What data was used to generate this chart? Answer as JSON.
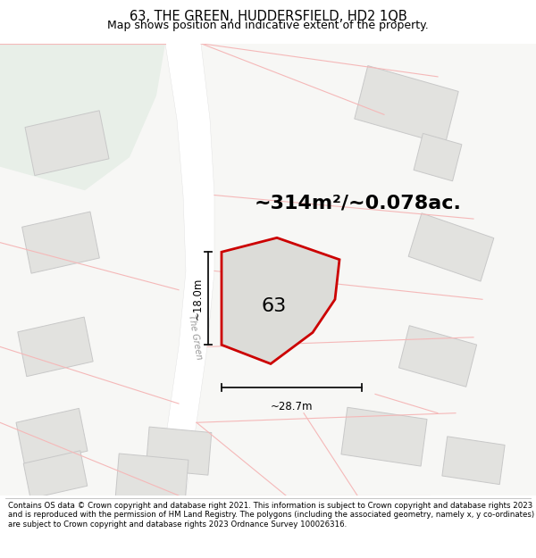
{
  "title_line1": "63, THE GREEN, HUDDERSFIELD, HD2 1QB",
  "title_line2": "Map shows position and indicative extent of the property.",
  "footer_text": "Contains OS data © Crown copyright and database right 2021. This information is subject to Crown copyright and database rights 2023 and is reproduced with the permission of HM Land Registry. The polygons (including the associated geometry, namely x, y co-ordinates) are subject to Crown copyright and database rights 2023 Ordnance Survey 100026316.",
  "area_text": "~314m²/~0.078ac.",
  "width_text": "~28.7m",
  "height_text": "~18.0m",
  "number_text": "63",
  "map_bg": "#f7f7f5",
  "road_fill": "#ffffff",
  "building_fill": "#e2e2df",
  "building_border": "#c8c8c8",
  "green_area_fill": "#e8efe8",
  "property_fill": "#dcdcd8",
  "property_border": "#cc0000",
  "road_line_color": "#f5b8b8",
  "dim_color": "#111111",
  "title_fontsize": 10.5,
  "subtitle_fontsize": 9,
  "footer_fontsize": 6.2,
  "area_fontsize": 16,
  "number_fontsize": 16
}
